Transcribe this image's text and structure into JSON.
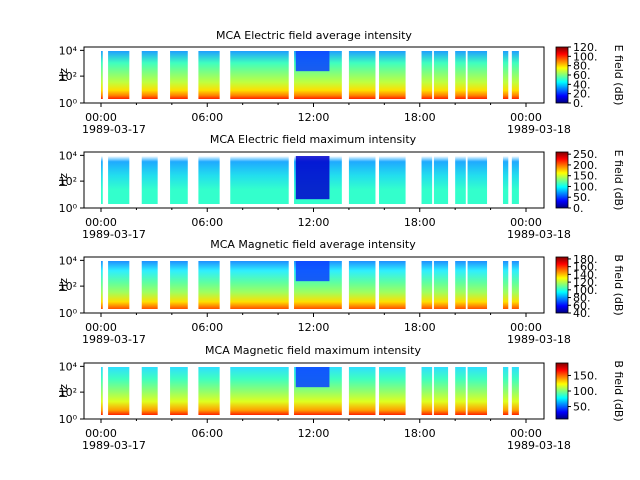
{
  "chart_data": [
    {
      "type": "heatmap",
      "title": "MCA  Electric field average intensity",
      "ylabel": "Hz",
      "y_scale": "log",
      "y_ticks": [
        "10⁰",
        "10²",
        "10⁴"
      ],
      "x_ticks": [
        "00:00",
        "06:00",
        "12:00",
        "18:00",
        "00:00"
      ],
      "x_dates": [
        "1989-03-17",
        "1989-03-18"
      ],
      "colorbar_label": "E field (dB)",
      "colorbar_ticks": [
        "0.",
        "20.",
        "40.",
        "60.",
        "80.",
        "100.",
        "120."
      ],
      "colorbar_range": [
        0,
        120
      ],
      "colormap": "jet"
    },
    {
      "type": "heatmap",
      "title": "MCA  Electric field maximum intensity",
      "ylabel": "Hz",
      "y_scale": "log",
      "y_ticks": [
        "10⁰",
        "10²",
        "10⁴"
      ],
      "x_ticks": [
        "00:00",
        "06:00",
        "12:00",
        "18:00",
        "00:00"
      ],
      "x_dates": [
        "1989-03-17",
        "1989-03-18"
      ],
      "colorbar_label": "E field (dB)",
      "colorbar_ticks": [
        "0.",
        "50.",
        "100.",
        "150.",
        "200.",
        "250."
      ],
      "colorbar_range": [
        0,
        260
      ],
      "colormap": "jet"
    },
    {
      "type": "heatmap",
      "title": "MCA  Magnetic field average intensity",
      "ylabel": "Hz",
      "y_scale": "log",
      "y_ticks": [
        "10⁰",
        "10²",
        "10⁴"
      ],
      "x_ticks": [
        "00:00",
        "06:00",
        "12:00",
        "18:00",
        "00:00"
      ],
      "x_dates": [
        "1989-03-17",
        "1989-03-18"
      ],
      "colorbar_label": "B field (dB)",
      "colorbar_ticks": [
        "40.",
        "60.",
        "80.",
        "100.",
        "120.",
        "140.",
        "160.",
        "180."
      ],
      "colorbar_range": [
        40,
        185
      ],
      "colormap": "jet"
    },
    {
      "type": "heatmap",
      "title": "MCA  Magnetic field maximum intensity",
      "ylabel": "Hz",
      "y_scale": "log",
      "y_ticks": [
        "10⁰",
        "10²",
        "10⁴"
      ],
      "x_ticks": [
        "00:00",
        "06:00",
        "12:00",
        "18:00",
        "00:00"
      ],
      "x_dates": [
        "1989-03-17",
        "1989-03-18"
      ],
      "colorbar_label": "B field (dB)",
      "colorbar_ticks": [
        "50.",
        "100.",
        "150."
      ],
      "colorbar_range": [
        10,
        190
      ],
      "colormap": "jet"
    }
  ],
  "data_time_blocks_hours": [
    [
      0.0,
      0.1
    ],
    [
      0.4,
      1.6
    ],
    [
      2.3,
      3.2
    ],
    [
      3.9,
      4.9
    ],
    [
      5.5,
      6.7
    ],
    [
      7.3,
      10.6
    ],
    [
      10.9,
      13.6
    ],
    [
      14.0,
      15.5
    ],
    [
      15.7,
      17.2
    ],
    [
      18.1,
      18.7
    ],
    [
      18.8,
      19.6
    ],
    [
      20.0,
      20.6
    ],
    [
      20.7,
      21.8
    ],
    [
      22.7,
      23.0
    ],
    [
      23.2,
      23.6
    ]
  ]
}
